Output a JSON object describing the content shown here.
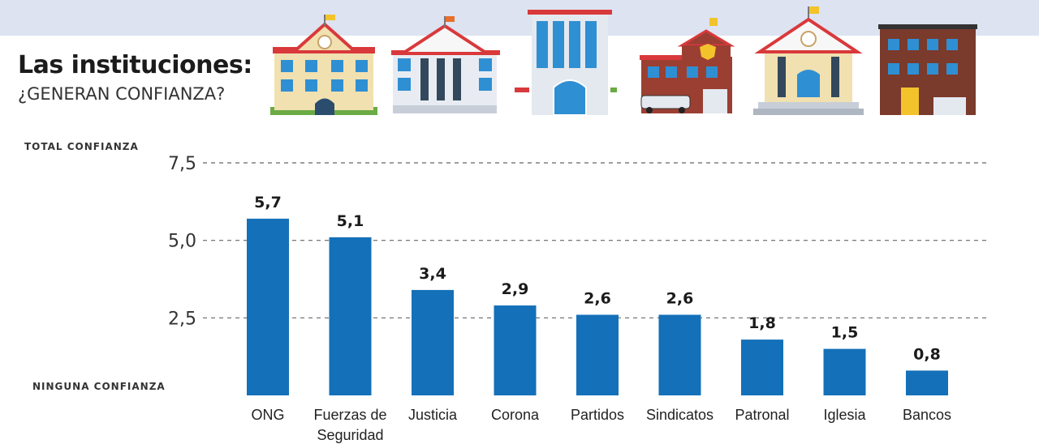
{
  "header": {
    "title": "Las instituciones:",
    "subtitle": "¿GENERAN CONFIANZA?"
  },
  "axis_labels": {
    "top": "TOTAL CONFIANZA",
    "bottom": "NINGUNA CONFIANZA"
  },
  "colors": {
    "bar": "#1470b8",
    "band": "#dde3f1",
    "grid": "#666666"
  },
  "chart_data": {
    "type": "bar",
    "title": "Las instituciones: ¿GENERAN CONFIANZA?",
    "ylabel": "TOTAL CONFIANZA",
    "ylabel_min": "NINGUNA CONFIANZA",
    "ylim": [
      0,
      7.5
    ],
    "yticks": [
      2.5,
      5.0,
      7.5
    ],
    "ytick_labels": [
      "2,5",
      "5,0",
      "7,5"
    ],
    "grid": true,
    "categories": [
      [
        "ONG"
      ],
      [
        "Fuerzas de",
        "Seguridad"
      ],
      [
        "Justicia"
      ],
      [
        "Corona"
      ],
      [
        "Partidos"
      ],
      [
        "Sindicatos"
      ],
      [
        "Patronal"
      ],
      [
        "Iglesia"
      ],
      [
        "Bancos"
      ]
    ],
    "values": [
      5.7,
      5.1,
      3.4,
      2.9,
      2.6,
      2.6,
      1.8,
      1.5,
      0.8
    ],
    "value_labels": [
      "5,7",
      "5,1",
      "3,4",
      "2,9",
      "2,6",
      "2,6",
      "1,8",
      "1,5",
      "0,8"
    ]
  }
}
